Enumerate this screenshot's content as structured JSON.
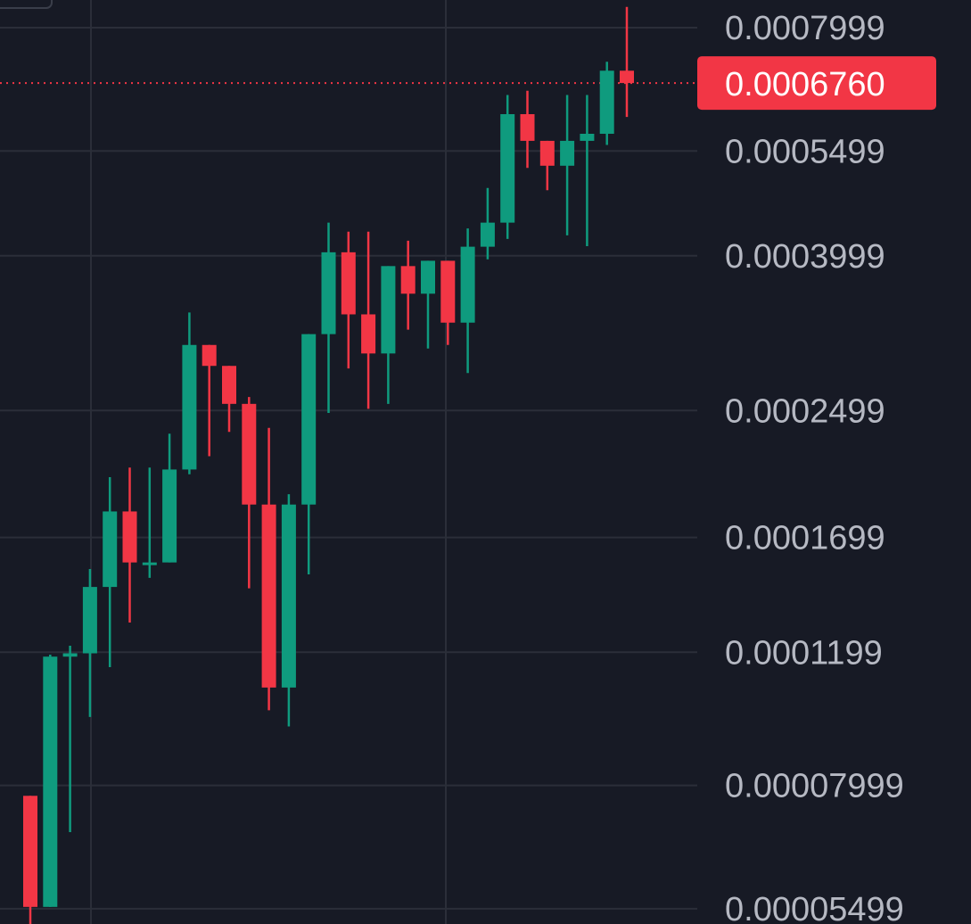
{
  "chart_data": {
    "type": "candlestick",
    "y_scale": "log",
    "ylim": [
      5.25e-05,
      0.00087
    ],
    "current_price": 0.000676,
    "current_price_label": "0.0006760",
    "y_ticks": [
      {
        "value": 0.0007999,
        "label": "0.0007999"
      },
      {
        "value": 0.0005499,
        "label": "0.0005499"
      },
      {
        "value": 0.0003999,
        "label": "0.0003999"
      },
      {
        "value": 0.0002499,
        "label": "0.0002499"
      },
      {
        "value": 0.0001699,
        "label": "0.0001699"
      },
      {
        "value": 0.0001199,
        "label": "0.0001199"
      },
      {
        "value": 7.999e-05,
        "label": "0.00007999"
      },
      {
        "value": 5.499e-05,
        "label": "0.00005499"
      }
    ],
    "candles": [
      {
        "open": 7.75e-05,
        "high": 7.75e-05,
        "low": 5.2e-05,
        "close": 5.53e-05
      },
      {
        "open": 5.53e-05,
        "high": 0.000119,
        "low": 5.53e-05,
        "close": 0.0001183
      },
      {
        "open": 0.0001183,
        "high": 0.0001223,
        "low": 6.94e-05,
        "close": 0.0001195
      },
      {
        "open": 0.0001195,
        "high": 0.0001544,
        "low": 9.85e-05,
        "close": 0.0001462
      },
      {
        "open": 0.0001462,
        "high": 0.0002041,
        "low": 0.0001146,
        "close": 0.0001839
      },
      {
        "open": 0.0001839,
        "high": 0.0002101,
        "low": 0.0001312,
        "close": 0.0001575
      },
      {
        "open": 0.0001575,
        "high": 0.0002101,
        "low": 0.0001503,
        "close": 0.0001575
      },
      {
        "open": 0.0001575,
        "high": 0.0002329,
        "low": 0.0001575,
        "close": 0.0002089
      },
      {
        "open": 0.0002089,
        "high": 0.0003366,
        "low": 0.0002059,
        "close": 0.000305
      },
      {
        "open": 0.000305,
        "high": 0.000305,
        "low": 0.0002175,
        "close": 0.0002862
      },
      {
        "open": 0.0002862,
        "high": 0.0002862,
        "low": 0.0002342,
        "close": 0.000255
      },
      {
        "open": 0.000255,
        "high": 0.0002604,
        "low": 0.0001456,
        "close": 0.0001878
      },
      {
        "open": 0.0001878,
        "high": 0.0002371,
        "low": 0.0001005,
        "close": 0.0001077
      },
      {
        "open": 0.0001077,
        "high": 0.0001938,
        "low": 9.57e-05,
        "close": 0.0001878
      },
      {
        "open": 0.0001878,
        "high": 0.0003152,
        "low": 0.0001519,
        "close": 0.0003152
      },
      {
        "open": 0.0003152,
        "high": 0.0004423,
        "low": 0.0002481,
        "close": 0.0004042
      },
      {
        "open": 0.0004042,
        "high": 0.0004303,
        "low": 0.000284,
        "close": 0.0003347
      },
      {
        "open": 0.0003347,
        "high": 0.0004303,
        "low": 0.0002512,
        "close": 0.0002972
      },
      {
        "open": 0.0002972,
        "high": 0.0003876,
        "low": 0.000255,
        "close": 0.0003876
      },
      {
        "open": 0.0003876,
        "high": 0.0004187,
        "low": 0.0003195,
        "close": 0.0003564
      },
      {
        "open": 0.0003564,
        "high": 0.0003939,
        "low": 0.0003017,
        "close": 0.0003939
      },
      {
        "open": 0.0003939,
        "high": 0.0003939,
        "low": 0.000305,
        "close": 0.0003264
      },
      {
        "open": 0.0003264,
        "high": 0.0004345,
        "low": 0.0002801,
        "close": 0.0004111
      },
      {
        "open": 0.0004111,
        "high": 0.0004915,
        "low": 0.0003956,
        "close": 0.0004423
      },
      {
        "open": 0.0004423,
        "high": 0.0006519,
        "low": 0.000421,
        "close": 0.000615
      },
      {
        "open": 0.000615,
        "high": 0.0006604,
        "low": 0.0005223,
        "close": 0.0005671
      },
      {
        "open": 0.0005671,
        "high": 0.0005671,
        "low": 0.0004881,
        "close": 0.0005258
      },
      {
        "open": 0.0005258,
        "high": 0.0006519,
        "low": 0.0004255,
        "close": 0.0005671
      },
      {
        "open": 0.0005671,
        "high": 0.0006519,
        "low": 0.0004118,
        "close": 0.0005794
      },
      {
        "open": 0.0005794,
        "high": 0.0007212,
        "low": 0.00056,
        "close": 0.0007018
      },
      {
        "open": 0.0007018,
        "high": 0.000852,
        "low": 0.0006097,
        "close": 0.000676
      }
    ],
    "colors": {
      "up": "#0f9b7e",
      "down": "#f23645",
      "background": "#171a25",
      "grid": "#2b2e39",
      "axis_text": "#b6b9c3",
      "current_price_bg": "#f23645"
    }
  }
}
